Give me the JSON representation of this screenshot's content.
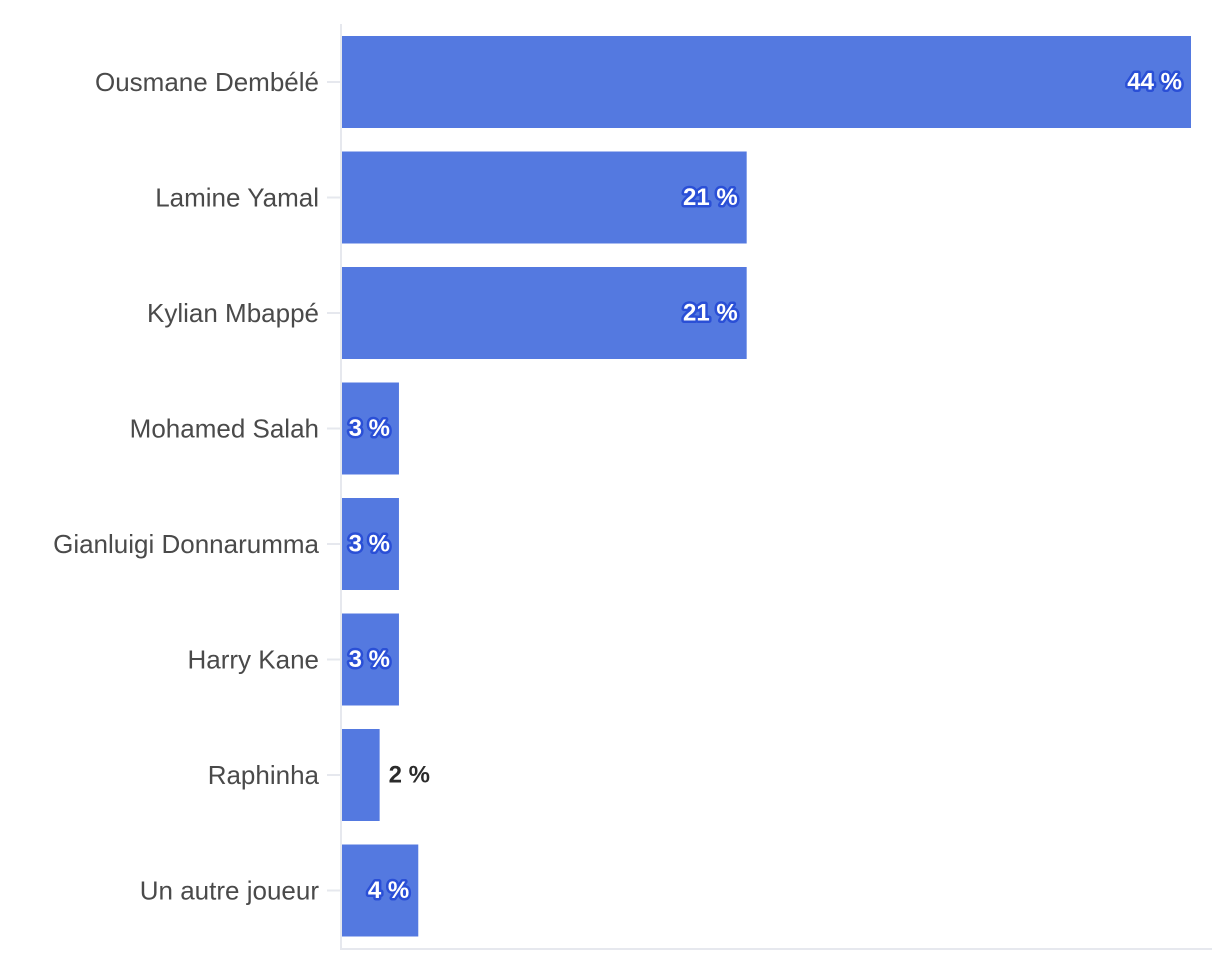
{
  "chart_data": {
    "type": "bar",
    "orientation": "horizontal",
    "categories": [
      "Ousmane Dembélé",
      "Lamine Yamal",
      "Kylian Mbappé",
      "Mohamed Salah",
      "Gianluigi Donnarumma",
      "Harry Kane",
      "Raphinha",
      "Un autre joueur"
    ],
    "values": [
      44,
      21,
      21,
      3,
      3,
      3,
      2,
      4
    ],
    "value_labels": [
      "44 %",
      "21 %",
      "21 %",
      "3 %",
      "3 %",
      "3 %",
      "2 %",
      "4 %"
    ],
    "xlim": [
      0,
      44
    ],
    "grid": false,
    "bar_color": "#5479e0",
    "axis_color": "#e6e8ee"
  }
}
